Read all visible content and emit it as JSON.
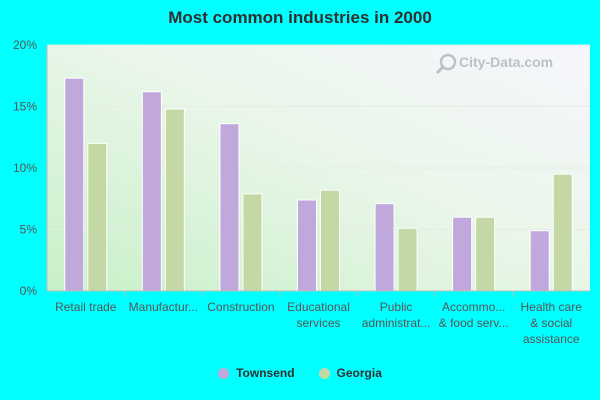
{
  "chart_data": {
    "type": "bar",
    "title": "Most common industries in 2000",
    "xlabel": "",
    "ylabel": "",
    "ylim": [
      0,
      20
    ],
    "yticks": [
      {
        "value": 0,
        "label": "0%"
      },
      {
        "value": 5,
        "label": "5%"
      },
      {
        "value": 10,
        "label": "10%"
      },
      {
        "value": 15,
        "label": "15%"
      },
      {
        "value": 20,
        "label": "20%"
      }
    ],
    "grid": true,
    "legend_position": "bottom",
    "categories": [
      [
        "Retail trade"
      ],
      [
        "Manufactur..."
      ],
      [
        "Construction"
      ],
      [
        "Educational",
        "services"
      ],
      [
        "Public",
        "administrat..."
      ],
      [
        "Accommo...",
        "& food serv..."
      ],
      [
        "Health care",
        "& social",
        "assistance"
      ]
    ],
    "series": [
      {
        "name": "Townsend",
        "color": "#c0a8dc",
        "values": [
          17.3,
          16.2,
          13.6,
          7.4,
          7.1,
          6.0,
          4.9
        ]
      },
      {
        "name": "Georgia",
        "color": "#c4d8a6",
        "values": [
          12.0,
          14.8,
          7.9,
          8.2,
          5.1,
          6.0,
          9.5
        ]
      }
    ]
  },
  "watermark": {
    "text": "City-Data.com",
    "icon": "magnifier-icon"
  }
}
